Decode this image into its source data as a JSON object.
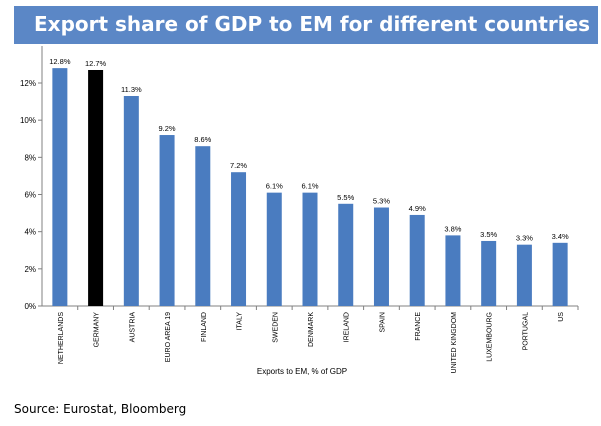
{
  "header": {
    "title": "Export share of GDP to EM for different countries"
  },
  "footer": {
    "source": "Source: Eurostat, Bloomberg"
  },
  "colors": {
    "title_bar": "#5b87c6",
    "bar": "#4a7cc0",
    "highlight_bar": "#000000",
    "axis": "#808080"
  },
  "chart_data": {
    "type": "bar",
    "title": "Export share of GDP to EM for different countries",
    "xlabel": "Exports to EM, % of GDP",
    "ylabel": "",
    "ylim": [
      0,
      14
    ],
    "yticks": [
      "0%",
      "2%",
      "4%",
      "6%",
      "8%",
      "10%",
      "12%"
    ],
    "ytick_values": [
      0,
      2,
      4,
      6,
      8,
      10,
      12
    ],
    "categories": [
      "NETHERLANDS",
      "GERMANY",
      "AUSTRIA",
      "EURO AREA 19",
      "FINLAND",
      "ITALY",
      "SWEDEN",
      "DENMARK",
      "IRELAND",
      "SPAIN",
      "FRANCE",
      "UNITED KINGDOM",
      "LUXEMBOURG",
      "PORTUGAL",
      "US"
    ],
    "values": [
      12.8,
      12.7,
      11.3,
      9.2,
      8.6,
      7.2,
      6.1,
      6.1,
      5.5,
      5.3,
      4.9,
      3.8,
      3.5,
      3.3,
      3.4
    ],
    "data_labels": [
      "12.8%",
      "12.7%",
      "11.3%",
      "9.2%",
      "8.6%",
      "7.2%",
      "6.1%",
      "6.1%",
      "5.5%",
      "5.3%",
      "4.9%",
      "3.8%",
      "3.5%",
      "3.3%",
      "3.4%"
    ],
    "highlight": "GERMANY",
    "grid": false,
    "legend": "none"
  }
}
